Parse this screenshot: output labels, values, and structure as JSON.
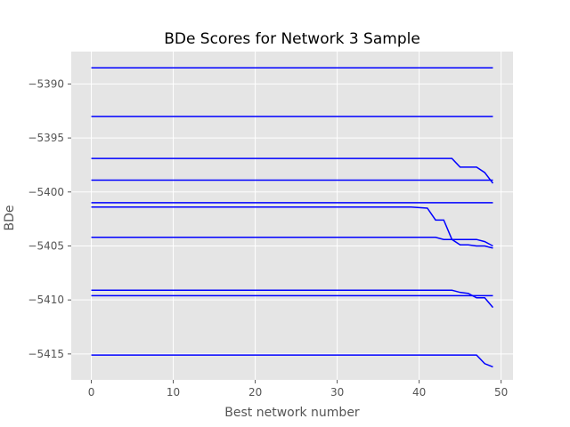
{
  "chart_data": {
    "type": "line",
    "title": "BDe Scores for Network 3 Sample",
    "xlabel": "Best network number",
    "ylabel": "BDe",
    "xlim": [
      -2.45,
      51.45
    ],
    "ylim": [
      -5417.4,
      -5387.0
    ],
    "xticks": [
      0,
      10,
      20,
      30,
      40,
      50
    ],
    "yticks": [
      -5390,
      -5395,
      -5400,
      -5405,
      -5410,
      -5415
    ],
    "grid": true,
    "line_color": "#0000ff",
    "background_color": "#e5e5e5",
    "series": [
      {
        "points": [
          [
            0,
            -5388.5
          ],
          [
            49,
            -5388.5
          ]
        ]
      },
      {
        "points": [
          [
            0,
            -5393.0
          ],
          [
            49,
            -5393.0
          ]
        ]
      },
      {
        "points": [
          [
            0,
            -5396.9
          ],
          [
            44,
            -5396.9
          ],
          [
            45,
            -5397.7
          ],
          [
            47,
            -5397.7
          ],
          [
            48,
            -5398.2
          ],
          [
            49,
            -5399.2
          ]
        ]
      },
      {
        "points": [
          [
            0,
            -5398.9
          ],
          [
            49,
            -5398.9
          ]
        ]
      },
      {
        "points": [
          [
            0,
            -5401.0
          ],
          [
            49,
            -5401.0
          ]
        ]
      },
      {
        "points": [
          [
            0,
            -5401.4
          ],
          [
            39,
            -5401.4
          ],
          [
            41,
            -5401.5
          ],
          [
            42,
            -5402.6
          ],
          [
            43,
            -5402.6
          ],
          [
            44,
            -5404.4
          ],
          [
            45,
            -5404.9
          ],
          [
            46,
            -5404.9
          ],
          [
            47,
            -5405.0
          ],
          [
            48,
            -5405.0
          ],
          [
            49,
            -5405.2
          ]
        ]
      },
      {
        "points": [
          [
            0,
            -5404.2
          ],
          [
            42,
            -5404.2
          ],
          [
            43,
            -5404.4
          ],
          [
            47,
            -5404.4
          ],
          [
            48,
            -5404.6
          ],
          [
            49,
            -5405.0
          ]
        ]
      },
      {
        "points": [
          [
            0,
            -5409.1
          ],
          [
            44,
            -5409.1
          ],
          [
            45,
            -5409.3
          ],
          [
            46,
            -5409.4
          ],
          [
            47,
            -5409.8
          ],
          [
            48,
            -5409.8
          ],
          [
            49,
            -5410.7
          ]
        ]
      },
      {
        "points": [
          [
            0,
            -5409.6
          ],
          [
            49,
            -5409.6
          ]
        ]
      },
      {
        "points": [
          [
            0,
            -5415.1
          ],
          [
            47,
            -5415.1
          ],
          [
            48,
            -5415.9
          ],
          [
            49,
            -5416.2
          ]
        ]
      }
    ]
  }
}
